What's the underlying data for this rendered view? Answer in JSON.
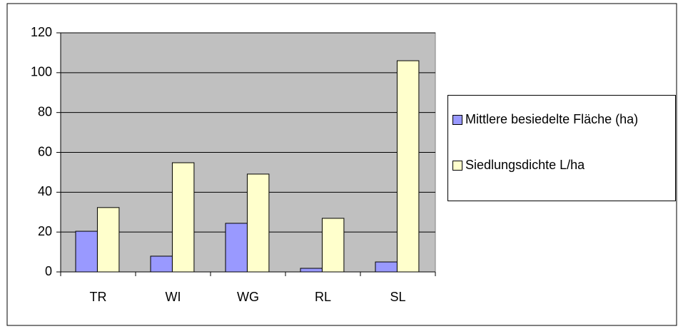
{
  "chart_data": {
    "type": "bar",
    "categories": [
      "TR",
      "WI",
      "WG",
      "RL",
      "SL"
    ],
    "series": [
      {
        "name": "Mittlere besiedelte Fläche (ha)",
        "color": "#9999ff",
        "values": [
          20.4,
          7.9,
          24.4,
          1.8,
          5
        ]
      },
      {
        "name": "Siedlungsdichte L/ha",
        "color": "#ffffcc",
        "values": [
          32.3,
          54.8,
          49.1,
          26.9,
          106
        ]
      }
    ],
    "ylim": [
      0,
      120
    ],
    "yticks": [
      0,
      20,
      40,
      60,
      80,
      100,
      120
    ],
    "grid": true,
    "legend": "right",
    "plot_background": "#c0c0c0"
  }
}
